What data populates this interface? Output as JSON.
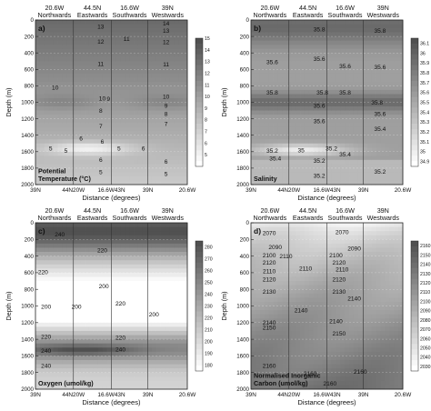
{
  "chart_data": [
    {
      "type": "heatmap",
      "panel_label": "a)",
      "title": "Potential Temperature (°C)",
      "title_lines": [
        "Potential",
        "Temperature (°C)"
      ],
      "xlabel": "Distance (degrees)",
      "ylabel": "Depth (m)",
      "ylim": [
        0,
        2000
      ],
      "y_ticks": [
        0,
        200,
        400,
        600,
        800,
        1000,
        1200,
        1400,
        1600,
        1800,
        2000
      ],
      "x_ticks": [
        "39N",
        "44N20W",
        "16.6W43N",
        "39N",
        "20.6W"
      ],
      "top_sections": [
        [
          "20.6W",
          "Northwards"
        ],
        [
          "44.5N",
          "Eastwards"
        ],
        [
          "16.6W",
          "Southwards"
        ],
        [
          "39N",
          "Westwards"
        ]
      ],
      "colorbar": {
        "min": 4,
        "max": 15,
        "ticks": [
          5,
          6,
          7,
          8,
          9,
          10,
          11,
          12,
          13,
          14,
          15
        ]
      },
      "contour_labels": [
        {
          "text": "13",
          "x": 0.43,
          "depth": 80
        },
        {
          "text": "12",
          "x": 0.43,
          "depth": 260
        },
        {
          "text": "11",
          "x": 0.43,
          "depth": 530
        },
        {
          "text": "10",
          "x": 0.13,
          "depth": 820
        },
        {
          "text": "10",
          "x": 0.44,
          "depth": 950
        },
        {
          "text": "9",
          "x": 0.48,
          "depth": 960
        },
        {
          "text": "8",
          "x": 0.43,
          "depth": 1100
        },
        {
          "text": "7",
          "x": 0.43,
          "depth": 1290
        },
        {
          "text": "6",
          "x": 0.3,
          "depth": 1440
        },
        {
          "text": "5",
          "x": 0.1,
          "depth": 1560
        },
        {
          "text": "5",
          "x": 0.2,
          "depth": 1590
        },
        {
          "text": "6",
          "x": 0.44,
          "depth": 1480
        },
        {
          "text": "5",
          "x": 0.55,
          "depth": 1560
        },
        {
          "text": "6",
          "x": 0.71,
          "depth": 1560
        },
        {
          "text": "6",
          "x": 0.43,
          "depth": 1700
        },
        {
          "text": "5",
          "x": 0.43,
          "depth": 1850
        },
        {
          "text": "11",
          "x": 0.6,
          "depth": 230
        },
        {
          "text": "14",
          "x": 0.86,
          "depth": 40
        },
        {
          "text": "13",
          "x": 0.86,
          "depth": 130
        },
        {
          "text": "12",
          "x": 0.86,
          "depth": 270
        },
        {
          "text": "11",
          "x": 0.86,
          "depth": 540
        },
        {
          "text": "10",
          "x": 0.86,
          "depth": 930
        },
        {
          "text": "9",
          "x": 0.86,
          "depth": 1040
        },
        {
          "text": "8",
          "x": 0.86,
          "depth": 1140
        },
        {
          "text": "7",
          "x": 0.86,
          "depth": 1260
        },
        {
          "text": "6",
          "x": 0.86,
          "depth": 1720
        },
        {
          "text": "5",
          "x": 0.86,
          "depth": 1870
        }
      ]
    },
    {
      "type": "heatmap",
      "panel_label": "b)",
      "title": "Salinity",
      "title_lines": [
        "Salinity"
      ],
      "xlabel": "Distance (degrees)",
      "ylabel": "Depth (m)",
      "ylim": [
        0,
        2000
      ],
      "y_ticks": [
        0,
        200,
        400,
        600,
        800,
        1000,
        1200,
        1400,
        1600,
        1800,
        2000
      ],
      "x_ticks": [
        "39N",
        "44N20W",
        "16.6W43N",
        "39N",
        "20.6W"
      ],
      "top_sections": [
        [
          "20.6W",
          "Northwards"
        ],
        [
          "44.5N",
          "Eastwards"
        ],
        [
          "16.6W",
          "Southwards"
        ],
        [
          "39N",
          "Westwards"
        ]
      ],
      "colorbar": {
        "min": 34.85,
        "max": 36.15,
        "ticks": [
          34.9,
          35,
          35.1,
          35.2,
          35.3,
          35.4,
          35.5,
          35.6,
          35.7,
          35.8,
          35.9,
          36,
          36.1
        ]
      },
      "contour_labels": [
        {
          "text": "35.8",
          "x": 0.45,
          "depth": 110
        },
        {
          "text": "35.8",
          "x": 0.85,
          "depth": 130
        },
        {
          "text": "35.6",
          "x": 0.14,
          "depth": 510
        },
        {
          "text": "35.6",
          "x": 0.45,
          "depth": 470
        },
        {
          "text": "35.6",
          "x": 0.62,
          "depth": 560
        },
        {
          "text": "35.6",
          "x": 0.85,
          "depth": 570
        },
        {
          "text": "35.8",
          "x": 0.14,
          "depth": 880
        },
        {
          "text": "35.8",
          "x": 0.47,
          "depth": 880
        },
        {
          "text": "35.8",
          "x": 0.62,
          "depth": 880
        },
        {
          "text": "35.8",
          "x": 0.83,
          "depth": 1000
        },
        {
          "text": "35.6",
          "x": 0.45,
          "depth": 1040
        },
        {
          "text": "35.6",
          "x": 0.45,
          "depth": 1230
        },
        {
          "text": "35.6",
          "x": 0.85,
          "depth": 1140
        },
        {
          "text": "35.4",
          "x": 0.85,
          "depth": 1320
        },
        {
          "text": "35.2",
          "x": 0.14,
          "depth": 1590
        },
        {
          "text": "35",
          "x": 0.33,
          "depth": 1580
        },
        {
          "text": "35.2",
          "x": 0.53,
          "depth": 1560
        },
        {
          "text": "35.4",
          "x": 0.62,
          "depth": 1630
        },
        {
          "text": "35.4",
          "x": 0.16,
          "depth": 1680
        },
        {
          "text": "35.2",
          "x": 0.45,
          "depth": 1710
        },
        {
          "text": "35.2",
          "x": 0.45,
          "depth": 1890
        },
        {
          "text": "35.2",
          "x": 0.85,
          "depth": 1840
        }
      ]
    },
    {
      "type": "heatmap",
      "panel_label": "c)",
      "title": "Oxygen (umol/kg)",
      "title_lines": [
        "Oxygen (umol/kg)"
      ],
      "xlabel": "Distance (degrees)",
      "ylabel": "Depth (m)",
      "ylim": [
        0,
        2000
      ],
      "y_ticks": [
        0,
        200,
        400,
        600,
        800,
        1000,
        1200,
        1400,
        1600,
        1800,
        2000
      ],
      "x_ticks": [
        "39N",
        "44N20W",
        "16.6W43N",
        "39N",
        "20.6W"
      ],
      "top_sections": [
        [
          "20.6W",
          "Northwards"
        ],
        [
          "44.5N",
          "Eastwards"
        ],
        [
          "16.6W",
          "Southwards"
        ],
        [
          "39N",
          "Westwards"
        ]
      ],
      "colorbar": {
        "min": 175,
        "max": 285,
        "ticks": [
          180,
          190,
          200,
          210,
          220,
          230,
          240,
          250,
          260,
          270,
          280
        ]
      },
      "contour_labels": [
        {
          "text": "240",
          "x": 0.16,
          "depth": 140
        },
        {
          "text": "220",
          "x": 0.44,
          "depth": 330
        },
        {
          "text": "220",
          "x": 0.05,
          "depth": 590
        },
        {
          "text": "200",
          "x": 0.45,
          "depth": 760
        },
        {
          "text": "200",
          "x": 0.07,
          "depth": 1010
        },
        {
          "text": "200",
          "x": 0.27,
          "depth": 1010
        },
        {
          "text": "220",
          "x": 0.56,
          "depth": 970
        },
        {
          "text": "200",
          "x": 0.78,
          "depth": 1100
        },
        {
          "text": "220",
          "x": 0.07,
          "depth": 1370
        },
        {
          "text": "220",
          "x": 0.56,
          "depth": 1380
        },
        {
          "text": "240",
          "x": 0.07,
          "depth": 1540
        },
        {
          "text": "240",
          "x": 0.56,
          "depth": 1520
        },
        {
          "text": "240",
          "x": 0.07,
          "depth": 1720
        }
      ]
    },
    {
      "type": "heatmap",
      "panel_label": "d)",
      "title": "Normalised Inorganic Carbon (umol/kg)",
      "title_lines": [
        "Normalised Inorganic",
        "Carbon (umol/kg)"
      ],
      "xlabel": "Distance (degrees)",
      "ylabel": "Depth (m)",
      "ylim": [
        0,
        2000
      ],
      "y_ticks": [
        0,
        200,
        400,
        600,
        800,
        1000,
        1200,
        1400,
        1600,
        1800,
        2000
      ],
      "x_ticks": [
        "39N",
        "44N20W",
        "16.6W43N",
        "39N",
        "20.6W"
      ],
      "top_sections": [
        [
          "20.6W",
          "Northwards"
        ],
        [
          "44.5N",
          "Eastwards"
        ],
        [
          "16.6W",
          "Southwards"
        ],
        [
          "39N",
          "Westwards"
        ]
      ],
      "colorbar": {
        "min": 2025,
        "max": 2165,
        "ticks": [
          2030,
          2040,
          2050,
          2060,
          2070,
          2080,
          2090,
          2100,
          2110,
          2120,
          2130,
          2140,
          2150,
          2160
        ]
      },
      "contour_labels": [
        {
          "text": "2070",
          "x": 0.12,
          "depth": 120
        },
        {
          "text": "2070",
          "x": 0.6,
          "depth": 110
        },
        {
          "text": "2090",
          "x": 0.16,
          "depth": 290
        },
        {
          "text": "2090",
          "x": 0.68,
          "depth": 310
        },
        {
          "text": "2100",
          "x": 0.12,
          "depth": 390
        },
        {
          "text": "2100",
          "x": 0.56,
          "depth": 390
        },
        {
          "text": "2110",
          "x": 0.23,
          "depth": 400
        },
        {
          "text": "2120",
          "x": 0.12,
          "depth": 480
        },
        {
          "text": "2120",
          "x": 0.58,
          "depth": 480
        },
        {
          "text": "2110",
          "x": 0.36,
          "depth": 550
        },
        {
          "text": "2110",
          "x": 0.12,
          "depth": 580
        },
        {
          "text": "2110",
          "x": 0.6,
          "depth": 560
        },
        {
          "text": "2120",
          "x": 0.12,
          "depth": 680
        },
        {
          "text": "2120",
          "x": 0.58,
          "depth": 680
        },
        {
          "text": "2130",
          "x": 0.12,
          "depth": 830
        },
        {
          "text": "2130",
          "x": 0.58,
          "depth": 830
        },
        {
          "text": "2140",
          "x": 0.68,
          "depth": 910
        },
        {
          "text": "2140",
          "x": 0.33,
          "depth": 1050
        },
        {
          "text": "2140",
          "x": 0.12,
          "depth": 1200
        },
        {
          "text": "2150",
          "x": 0.12,
          "depth": 1260
        },
        {
          "text": "2140",
          "x": 0.56,
          "depth": 1180
        },
        {
          "text": "2150",
          "x": 0.58,
          "depth": 1330
        },
        {
          "text": "2160",
          "x": 0.12,
          "depth": 1720
        },
        {
          "text": "2160",
          "x": 0.39,
          "depth": 1810
        },
        {
          "text": "2160",
          "x": 0.72,
          "depth": 1790
        },
        {
          "text": "2160",
          "x": 0.52,
          "depth": 1930
        }
      ]
    }
  ]
}
